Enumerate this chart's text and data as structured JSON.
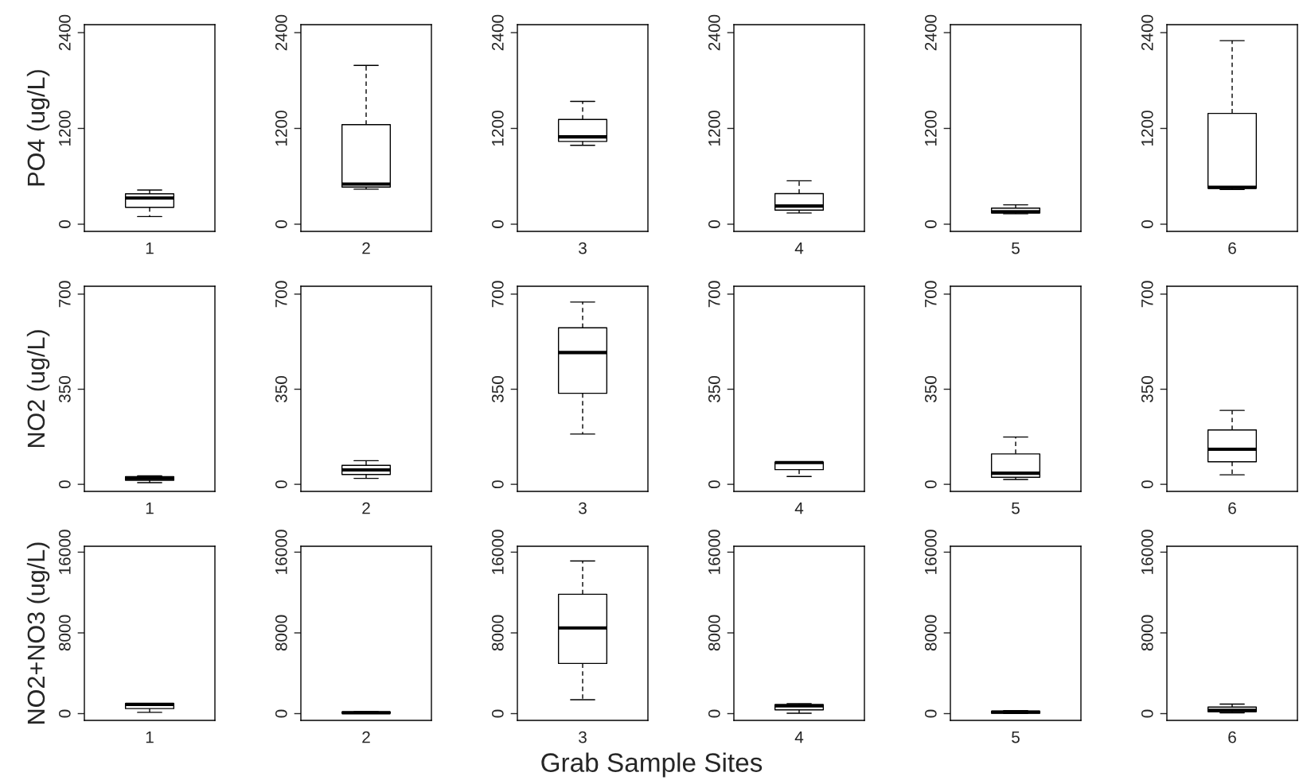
{
  "chart_data": [
    {
      "type": "box",
      "ylabel": "PO4 (ug/L)",
      "categories": [
        "1"
      ],
      "ylim": [
        -90,
        2500
      ],
      "yticks": [
        0,
        1200,
        2400
      ],
      "boxes": [
        {
          "low": 95,
          "q1": 212,
          "median": 328,
          "q3": 381,
          "high": 428
        }
      ]
    },
    {
      "type": "box",
      "categories": [
        "2"
      ],
      "ylim": [
        -90,
        2500
      ],
      "yticks": [
        0,
        1200,
        2400
      ],
      "boxes": [
        {
          "low": 439,
          "q1": 466,
          "median": 503,
          "q3": 1248,
          "high": 1989
        }
      ]
    },
    {
      "type": "box",
      "categories": [
        "3"
      ],
      "ylim": [
        -90,
        2500
      ],
      "yticks": [
        0,
        1200,
        2400
      ],
      "boxes": [
        {
          "low": 989,
          "q1": 1037,
          "median": 1095,
          "q3": 1312,
          "high": 1539
        }
      ]
    },
    {
      "type": "box",
      "categories": [
        "4"
      ],
      "ylim": [
        -90,
        2500
      ],
      "yticks": [
        0,
        1200,
        2400
      ],
      "boxes": [
        {
          "low": 140,
          "q1": 176,
          "median": 228,
          "q3": 383,
          "high": 544
        }
      ]
    },
    {
      "type": "box",
      "categories": [
        "5"
      ],
      "ylim": [
        -90,
        2500
      ],
      "yticks": [
        0,
        1200,
        2400
      ],
      "boxes": [
        {
          "low": 130,
          "q1": 140,
          "median": 155,
          "q3": 202,
          "high": 243
        }
      ]
    },
    {
      "type": "box",
      "categories": [
        "6"
      ],
      "ylim": [
        -90,
        2500
      ],
      "yticks": [
        0,
        1200,
        2400
      ],
      "boxes": [
        {
          "low": 435,
          "q1": 451,
          "median": 461,
          "q3": 1388,
          "high": 2300
        }
      ]
    },
    {
      "type": "box",
      "ylabel": "NO2 (ug/L)",
      "categories": [
        "1"
      ],
      "ylim": [
        -26,
        729
      ],
      "yticks": [
        0,
        350,
        700
      ],
      "boxes": [
        {
          "low": 6,
          "q1": 15,
          "median": 22,
          "q3": 28,
          "high": 31
        }
      ]
    },
    {
      "type": "box",
      "categories": [
        "2"
      ],
      "ylim": [
        -26,
        729
      ],
      "yticks": [
        0,
        350,
        700
      ],
      "boxes": [
        {
          "low": 22,
          "q1": 36,
          "median": 53,
          "q3": 70,
          "high": 87
        }
      ]
    },
    {
      "type": "box",
      "categories": [
        "3"
      ],
      "ylim": [
        -26,
        729
      ],
      "yticks": [
        0,
        350,
        700
      ],
      "boxes": [
        {
          "low": 185,
          "q1": 335,
          "median": 485,
          "q3": 576,
          "high": 671
        }
      ]
    },
    {
      "type": "box",
      "categories": [
        "4"
      ],
      "ylim": [
        -26,
        729
      ],
      "yticks": [
        0,
        350,
        700
      ],
      "boxes": [
        {
          "low": 29,
          "q1": 54,
          "median": 80,
          "q3": 82,
          "high": 82
        }
      ]
    },
    {
      "type": "box",
      "categories": [
        "5"
      ],
      "ylim": [
        -26,
        729
      ],
      "yticks": [
        0,
        350,
        700
      ],
      "boxes": [
        {
          "low": 18,
          "q1": 26,
          "median": 41,
          "q3": 112,
          "high": 174
        }
      ]
    },
    {
      "type": "box",
      "categories": [
        "6"
      ],
      "ylim": [
        -26,
        729
      ],
      "yticks": [
        0,
        350,
        700
      ],
      "boxes": [
        {
          "low": 35,
          "q1": 83,
          "median": 129,
          "q3": 200,
          "high": 272
        }
      ]
    },
    {
      "type": "box",
      "ylabel": "NO2+NO3 (ug/L)",
      "categories": [
        "1"
      ],
      "ylim": [
        -670,
        16585
      ],
      "yticks": [
        0,
        8000,
        16000
      ],
      "boxes": [
        {
          "low": 125,
          "q1": 500,
          "median": 920,
          "q3": 1000,
          "high": 1000
        }
      ]
    },
    {
      "type": "box",
      "categories": [
        "2"
      ],
      "ylim": [
        -670,
        16585
      ],
      "yticks": [
        0,
        8000,
        16000
      ],
      "boxes": [
        {
          "low": 30,
          "q1": 40,
          "median": 85,
          "q3": 170,
          "high": 210
        }
      ]
    },
    {
      "type": "box",
      "xlabel": "Grab Sample Sites",
      "categories": [
        "3"
      ],
      "ylim": [
        -670,
        16585
      ],
      "yticks": [
        0,
        8000,
        16000
      ],
      "boxes": [
        {
          "low": 1380,
          "q1": 4970,
          "median": 8490,
          "q3": 11830,
          "high": 15130
        }
      ]
    },
    {
      "type": "box",
      "categories": [
        "4"
      ],
      "ylim": [
        -670,
        16585
      ],
      "yticks": [
        0,
        8000,
        16000
      ],
      "boxes": [
        {
          "low": 40,
          "q1": 370,
          "median": 780,
          "q3": 900,
          "high": 980
        }
      ]
    },
    {
      "type": "box",
      "categories": [
        "5"
      ],
      "ylim": [
        -670,
        16585
      ],
      "yticks": [
        0,
        8000,
        16000
      ],
      "boxes": [
        {
          "low": 20,
          "q1": 40,
          "median": 160,
          "q3": 245,
          "high": 290
        }
      ]
    },
    {
      "type": "box",
      "categories": [
        "6"
      ],
      "ylim": [
        -670,
        16585
      ],
      "yticks": [
        0,
        8000,
        16000
      ],
      "boxes": [
        {
          "low": 80,
          "q1": 200,
          "median": 330,
          "q3": 650,
          "high": 940
        }
      ]
    }
  ]
}
